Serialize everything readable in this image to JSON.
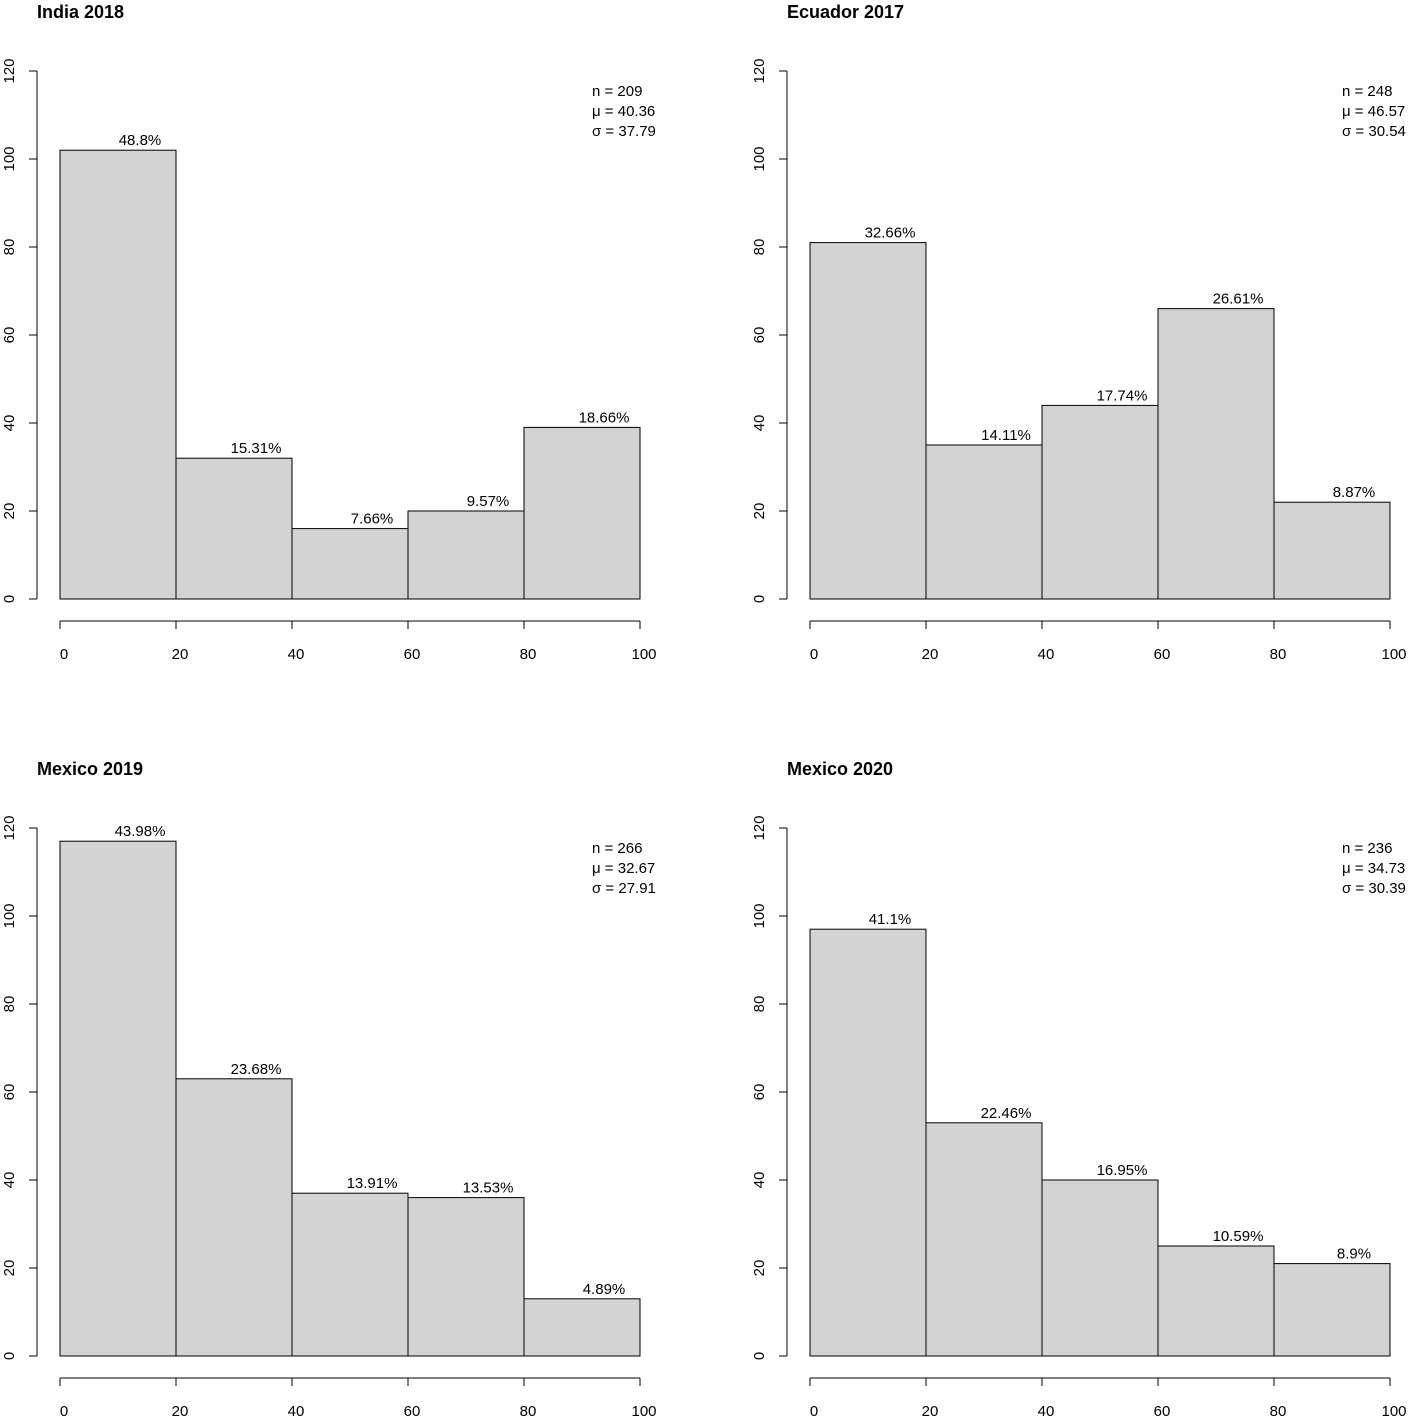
{
  "chart_data": [
    {
      "type": "histogram",
      "title": "India 2018",
      "bins": [
        0,
        20,
        40,
        60,
        80,
        100
      ],
      "values": [
        102,
        32,
        16,
        20,
        39
      ],
      "percent_labels": [
        "48.8%",
        "15.31%",
        "7.66%",
        "9.57%",
        "18.66%"
      ],
      "stats": [
        "n = 209",
        "μ = 40.36",
        "σ = 37.79"
      ],
      "color": "#d3d3d3",
      "xlim": [
        0,
        100
      ],
      "xticks": [
        0,
        20,
        40,
        60,
        80,
        100
      ],
      "ylim": [
        0,
        120
      ],
      "yticks": [
        0,
        20,
        40,
        60,
        80,
        100,
        120
      ]
    },
    {
      "type": "histogram",
      "title": "Ecuador 2017",
      "bins": [
        0,
        20,
        40,
        60,
        80,
        100
      ],
      "values": [
        81,
        35,
        44,
        66,
        22
      ],
      "percent_labels": [
        "32.66%",
        "14.11%",
        "17.74%",
        "26.61%",
        "8.87%"
      ],
      "stats": [
        "n = 248",
        "μ = 46.57",
        "σ = 30.54"
      ],
      "color": "#d3d3d3",
      "xlim": [
        0,
        100
      ],
      "xticks": [
        0,
        20,
        40,
        60,
        80,
        100
      ],
      "ylim": [
        0,
        120
      ],
      "yticks": [
        0,
        20,
        40,
        60,
        80,
        100,
        120
      ]
    },
    {
      "type": "histogram",
      "title": "Mexico 2019",
      "bins": [
        0,
        20,
        40,
        60,
        80,
        100
      ],
      "values": [
        117,
        63,
        37,
        36,
        13
      ],
      "percent_labels": [
        "43.98%",
        "23.68%",
        "13.91%",
        "13.53%",
        "4.89%"
      ],
      "stats": [
        "n = 266",
        "μ = 32.67",
        "σ = 27.91"
      ],
      "color": "#d3d3d3",
      "xlim": [
        0,
        100
      ],
      "xticks": [
        0,
        20,
        40,
        60,
        80,
        100
      ],
      "ylim": [
        0,
        120
      ],
      "yticks": [
        0,
        20,
        40,
        60,
        80,
        100,
        120
      ]
    },
    {
      "type": "histogram",
      "title": "Mexico 2020",
      "bins": [
        0,
        20,
        40,
        60,
        80,
        100
      ],
      "values": [
        97,
        53,
        40,
        25,
        21
      ],
      "percent_labels": [
        "41.1%",
        "22.46%",
        "16.95%",
        "10.59%",
        "8.9%"
      ],
      "stats": [
        "n = 236",
        "μ = 34.73",
        "σ = 30.39"
      ],
      "color": "#d3d3d3",
      "xlim": [
        0,
        100
      ],
      "xticks": [
        0,
        20,
        40,
        60,
        80,
        100
      ],
      "ylim": [
        0,
        120
      ],
      "yticks": [
        0,
        20,
        40,
        60,
        80,
        100,
        120
      ]
    }
  ]
}
